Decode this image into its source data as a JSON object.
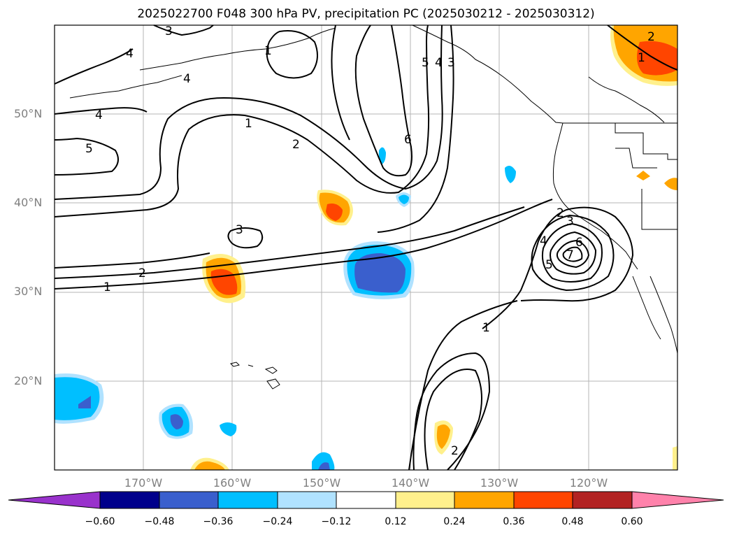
{
  "title": "2025022700 F048 300 hPa PV, precipitation PC (2025030212 - 2025030312)",
  "map": {
    "lat_labels": [
      "50°N",
      "40°N",
      "30°N",
      "20°N"
    ],
    "lon_labels": [
      "170°W",
      "160°W",
      "150°W",
      "140°W",
      "130°W",
      "120°W"
    ],
    "contour_labels": [
      "1",
      "2",
      "3",
      "4",
      "5",
      "6",
      "7"
    ]
  },
  "colorbar": {
    "ticks": [
      "−0.60",
      "−0.48",
      "−0.36",
      "−0.24",
      "−0.12",
      "0.12",
      "0.24",
      "0.36",
      "0.48",
      "0.60"
    ],
    "colors": [
      "#9932cc",
      "#00008b",
      "#3a5fcd",
      "#00bfff",
      "#b0e2ff",
      "#ffffff",
      "#fff08c",
      "#ffa500",
      "#ff4500",
      "#b22222",
      "#ff82ab"
    ]
  }
}
